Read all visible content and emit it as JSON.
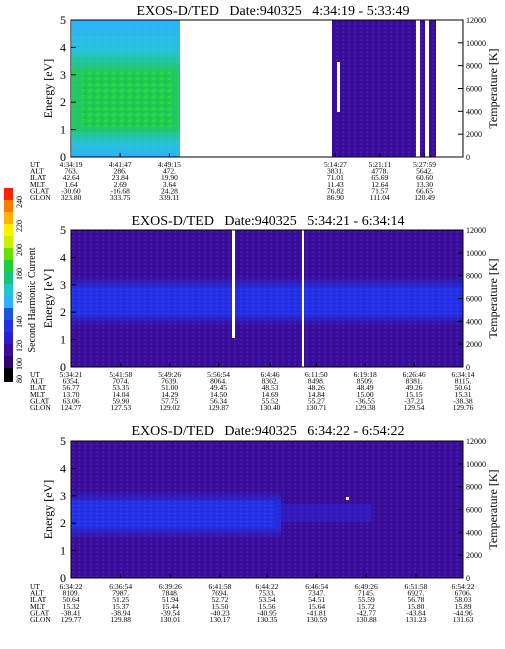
{
  "colors": {
    "background_purple": "#3a0e9a",
    "band_blue": "#2332e8",
    "mid_blue": "#1a55e0",
    "green": "#1ecf3a",
    "cyan": "#2fb0ff"
  },
  "colorbar": {
    "label": "Second Harmonic Current",
    "ticks": [
      "240",
      "220",
      "200",
      "180",
      "160",
      "140",
      "120",
      "100",
      "80"
    ]
  },
  "panels": [
    {
      "title": "EXOS-D/TED   Date:940325   4:34:19 - 5:33:49",
      "ylabel": "Energy [eV]",
      "y2label": "Temperature [K]",
      "row_labels": [
        "UT",
        "ALT",
        "ILAT",
        "MLT",
        "GLAT",
        "GLON"
      ],
      "columns": [
        {
          "UT": "4:34:19",
          "ALT": "763.",
          "ILAT": "42.64",
          "MLT": "1.64",
          "GLAT": "-30.60",
          "GLON": "323.80"
        },
        {
          "UT": "4:41:47",
          "ALT": "286.",
          "ILAT": "23.84",
          "MLT": "2.69",
          "GLAT": "-16.68",
          "GLON": "333.75"
        },
        {
          "UT": "4:49:15",
          "ALT": "472.",
          "ILAT": "19.90",
          "MLT": "3.64",
          "GLAT": "24.28",
          "GLON": "339.11"
        },
        {
          "UT": "5:14:27",
          "ALT": "3831.",
          "ILAT": "71.01",
          "MLT": "11.43",
          "GLAT": "76.82",
          "GLON": "86.90"
        },
        {
          "UT": "5:21:11",
          "ALT": "4778.",
          "ILAT": "65.69",
          "MLT": "12.64",
          "GLAT": "71.57",
          "GLON": "111.04"
        },
        {
          "UT": "5:27:59",
          "ALT": "5642.",
          "ILAT": "60.60",
          "MLT": "13.30",
          "GLAT": "66.65",
          "GLON": "120.49"
        }
      ]
    },
    {
      "title": "EXOS-D/TED   Date:940325   5:34:21 - 6:34:14",
      "ylabel": "Energy [eV]",
      "y2label": "Temperature [K]",
      "row_labels": [
        "UT",
        "ALT",
        "ILAT",
        "MLT",
        "GLAT",
        "GLON"
      ],
      "columns": [
        {
          "UT": "5:34:21",
          "ALT": "6354.",
          "ILAT": "56.77",
          "MLT": "13.70",
          "GLAT": "63.06",
          "GLON": "124.77"
        },
        {
          "UT": "5:41:58",
          "ALT": "7074.",
          "ILAT": "53.35",
          "MLT": "14.04",
          "GLAT": "59.90",
          "GLON": "127.53"
        },
        {
          "UT": "5:49:26",
          "ALT": "7639.",
          "ILAT": "51.00",
          "MLT": "14.29",
          "GLAT": "57.75",
          "GLON": "129.02"
        },
        {
          "UT": "5:56:54",
          "ALT": "8064.",
          "ILAT": "49.45",
          "MLT": "14.50",
          "GLAT": "56.34",
          "GLON": "129.87"
        },
        {
          "UT": "6:4:46",
          "ALT": "8362.",
          "ILAT": "48.53",
          "MLT": "14.69",
          "GLAT": "55.52",
          "GLON": "130.40"
        },
        {
          "UT": "6:11:50",
          "ALT": "8498.",
          "ILAT": "48.26",
          "MLT": "14.84",
          "GLAT": "55.27",
          "GLON": "130.71"
        },
        {
          "UT": "6:19:18",
          "ALT": "8509.",
          "ILAT": "48.49",
          "MLT": "15.00",
          "GLAT": "-36.55",
          "GLON": "129.38"
        },
        {
          "UT": "6:26:46",
          "ALT": "8381.",
          "ILAT": "49.26",
          "MLT": "15.15",
          "GLAT": "-37.21",
          "GLON": "129.54"
        },
        {
          "UT": "6:34:14",
          "ALT": "8115.",
          "ILAT": "50.61",
          "MLT": "15.31",
          "GLAT": "-38.38",
          "GLON": "129.76"
        }
      ]
    },
    {
      "title": "EXOS-D/TED   Date:940325   6:34:22 - 6:54:22",
      "ylabel": "Energy [eV]",
      "y2label": "Temperature [K]",
      "row_labels": [
        "UT",
        "ALT",
        "ILAT",
        "MLT",
        "GLAT",
        "GLON"
      ],
      "columns": [
        {
          "UT": "6:34:22",
          "ALT": "8109.",
          "ILAT": "50.64",
          "MLT": "15.32",
          "GLAT": "-38.41",
          "GLON": "129.77"
        },
        {
          "UT": "6:36:54",
          "ALT": "7987.",
          "ILAT": "51.25",
          "MLT": "15.37",
          "GLAT": "-38.94",
          "GLON": "129.88"
        },
        {
          "UT": "6:39:26",
          "ALT": "7848.",
          "ILAT": "51.94",
          "MLT": "15.44",
          "GLAT": "-39.54",
          "GLON": "130.01"
        },
        {
          "UT": "6:41:58",
          "ALT": "7694.",
          "ILAT": "52.72",
          "MLT": "15.50",
          "GLAT": "-40.23",
          "GLON": "130.17"
        },
        {
          "UT": "6:44:22",
          "ALT": "7533.",
          "ILAT": "53.54",
          "MLT": "15.56",
          "GLAT": "-40.95",
          "GLON": "130.35"
        },
        {
          "UT": "6:46:54",
          "ALT": "7347.",
          "ILAT": "54.51",
          "MLT": "15.64",
          "GLAT": "-41.81",
          "GLON": "130.59"
        },
        {
          "UT": "6:49:26",
          "ALT": "7145.",
          "ILAT": "55.59",
          "MLT": "15.72",
          "GLAT": "-42.77",
          "GLON": "130.88"
        },
        {
          "UT": "6:51:58",
          "ALT": "6927.",
          "ILAT": "56.78",
          "MLT": "15.80",
          "GLAT": "-43.84",
          "GLON": "131.23"
        },
        {
          "UT": "6:54:22",
          "ALT": "6706.",
          "ILAT": "58.03",
          "MLT": "15.89",
          "GLAT": "-44.96",
          "GLON": "131.63"
        }
      ]
    }
  ],
  "chart_data": [
    {
      "type": "heatmap",
      "title": "EXOS-D/TED   Date:940325   4:34:19 - 5:33:49",
      "ylabel": "Energy [eV]",
      "y2label": "Temperature [K]",
      "ylim": [
        0,
        5
      ],
      "yticks": [
        0,
        1,
        2,
        3,
        4,
        5
      ],
      "y2lim": [
        0,
        12000
      ],
      "y2ticks": [
        0,
        2000,
        4000,
        6000,
        8000,
        10000,
        12000
      ],
      "xlim": [
        "4:34:19",
        "5:33:49"
      ],
      "data_gaps": [
        [
          "4:52",
          "5:14"
        ],
        [
          "5:31",
          "5:32"
        ]
      ],
      "regions": [
        {
          "start": "4:34:19",
          "end": "4:52",
          "dominant_energy_eV": [
            0,
            5
          ],
          "intensity": "high (cyan/green)",
          "peak_band_eV": [
            1,
            3.2
          ]
        },
        {
          "start": "5:14:27",
          "end": "5:33:49",
          "dominant_energy_eV": [
            0,
            5
          ],
          "intensity": "low (purple)"
        }
      ]
    },
    {
      "type": "heatmap",
      "title": "EXOS-D/TED   Date:940325   5:34:21 - 6:34:14",
      "ylabel": "Energy [eV]",
      "y2label": "Temperature [K]",
      "ylim": [
        0,
        5
      ],
      "yticks": [
        0,
        1,
        2,
        3,
        4,
        5
      ],
      "y2lim": [
        0,
        12000
      ],
      "y2ticks": [
        0,
        2000,
        4000,
        6000,
        8000,
        10000,
        12000
      ],
      "xlim": [
        "5:34:21",
        "6:34:14"
      ],
      "enhanced_band_eV": [
        1.7,
        3.0
      ],
      "band_center_eV": 2.4,
      "data_gaps_at_UT": [
        "6:1",
        "6:10"
      ]
    },
    {
      "type": "heatmap",
      "title": "EXOS-D/TED   Date:940325   6:34:22 - 6:54:22",
      "ylabel": "Energy [eV]",
      "y2label": "Temperature [K]",
      "ylim": [
        0,
        5
      ],
      "yticks": [
        0,
        1,
        2,
        3,
        4,
        5
      ],
      "y2lim": [
        0,
        12000
      ],
      "y2ticks": [
        0,
        2000,
        4000,
        6000,
        8000,
        10000,
        12000
      ],
      "xlim": [
        "6:34:22",
        "6:54:22"
      ],
      "enhanced_band_eV": [
        1.9,
        3.0
      ],
      "band_end_UT": "6:44:22",
      "band_center_eV": 2.5
    }
  ]
}
